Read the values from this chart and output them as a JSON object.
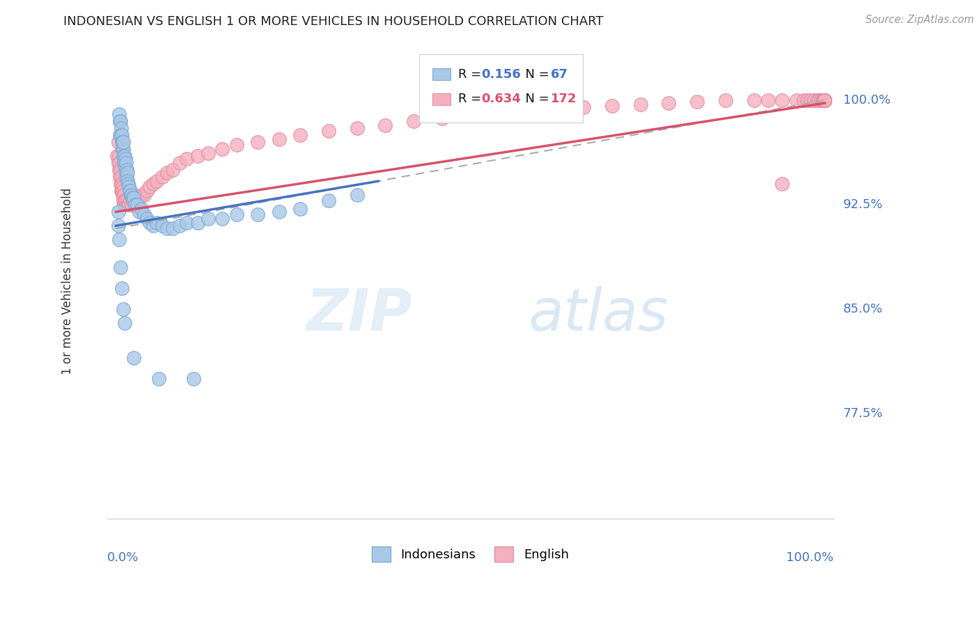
{
  "title": "INDONESIAN VS ENGLISH 1 OR MORE VEHICLES IN HOUSEHOLD CORRELATION CHART",
  "source": "Source: ZipAtlas.com",
  "ylabel": "1 or more Vehicles in Household",
  "ytick_labels": [
    "100.0%",
    "92.5%",
    "85.0%",
    "77.5%"
  ],
  "ytick_values": [
    1.0,
    0.925,
    0.85,
    0.775
  ],
  "watermark_zip": "ZIP",
  "watermark_atlas": "atlas",
  "color_indonesian": "#a8c8e8",
  "color_english": "#f5b0c0",
  "color_line_indonesian": "#4472c4",
  "color_line_english": "#d94f6a",
  "legend_r1_val": "0.156",
  "legend_n1_val": "67",
  "legend_r2_val": "0.634",
  "legend_n2_val": "172",
  "ind_x": [
    0.004,
    0.005,
    0.005,
    0.006,
    0.007,
    0.007,
    0.008,
    0.008,
    0.009,
    0.009,
    0.01,
    0.01,
    0.01,
    0.011,
    0.011,
    0.012,
    0.012,
    0.013,
    0.013,
    0.014,
    0.014,
    0.015,
    0.015,
    0.016,
    0.016,
    0.017,
    0.018,
    0.019,
    0.02,
    0.021,
    0.022,
    0.023,
    0.024,
    0.025,
    0.027,
    0.03,
    0.033,
    0.036,
    0.04,
    0.044,
    0.048,
    0.053,
    0.058,
    0.065,
    0.072,
    0.08,
    0.09,
    0.1,
    0.115,
    0.13,
    0.15,
    0.17,
    0.2,
    0.23,
    0.26,
    0.3,
    0.34,
    0.003,
    0.003,
    0.004,
    0.006,
    0.008,
    0.01,
    0.012,
    0.025,
    0.06,
    0.11
  ],
  "ind_y": [
    0.99,
    0.985,
    0.975,
    0.985,
    0.98,
    0.975,
    0.975,
    0.97,
    0.97,
    0.965,
    0.965,
    0.96,
    0.97,
    0.96,
    0.955,
    0.96,
    0.955,
    0.958,
    0.952,
    0.955,
    0.948,
    0.95,
    0.945,
    0.948,
    0.942,
    0.94,
    0.938,
    0.935,
    0.935,
    0.932,
    0.932,
    0.93,
    0.928,
    0.93,
    0.925,
    0.925,
    0.92,
    0.922,
    0.918,
    0.915,
    0.912,
    0.91,
    0.912,
    0.91,
    0.908,
    0.908,
    0.91,
    0.912,
    0.912,
    0.915,
    0.915,
    0.918,
    0.918,
    0.92,
    0.922,
    0.928,
    0.932,
    0.92,
    0.91,
    0.9,
    0.88,
    0.865,
    0.85,
    0.84,
    0.815,
    0.8,
    0.8
  ],
  "eng_x": [
    0.002,
    0.003,
    0.003,
    0.004,
    0.004,
    0.005,
    0.005,
    0.006,
    0.006,
    0.007,
    0.007,
    0.008,
    0.008,
    0.009,
    0.009,
    0.01,
    0.01,
    0.011,
    0.011,
    0.012,
    0.013,
    0.014,
    0.015,
    0.016,
    0.017,
    0.018,
    0.02,
    0.022,
    0.024,
    0.026,
    0.028,
    0.03,
    0.033,
    0.036,
    0.04,
    0.044,
    0.048,
    0.053,
    0.058,
    0.065,
    0.072,
    0.08,
    0.09,
    0.1,
    0.115,
    0.13,
    0.15,
    0.17,
    0.2,
    0.23,
    0.26,
    0.3,
    0.34,
    0.38,
    0.42,
    0.46,
    0.5,
    0.54,
    0.58,
    0.62,
    0.66,
    0.7,
    0.74,
    0.78,
    0.82,
    0.86,
    0.9,
    0.92,
    0.94,
    0.96,
    0.97,
    0.975,
    0.98,
    0.985,
    0.99,
    0.992,
    0.995,
    0.997,
    0.998,
    0.999,
    1.0,
    1.0,
    1.0,
    1.0,
    1.0,
    1.0,
    1.0,
    1.0,
    1.0,
    1.0,
    1.0,
    1.0,
    1.0,
    1.0,
    1.0,
    1.0,
    1.0,
    1.0,
    1.0,
    1.0,
    1.0,
    1.0,
    1.0,
    1.0,
    1.0,
    1.0,
    1.0,
    1.0,
    1.0,
    1.0,
    1.0,
    1.0,
    1.0,
    1.0,
    1.0,
    1.0,
    1.0,
    1.0,
    1.0,
    1.0,
    1.0,
    1.0,
    1.0,
    1.0,
    1.0,
    1.0,
    1.0,
    1.0,
    1.0,
    1.0,
    1.0,
    1.0,
    1.0,
    1.0,
    1.0,
    1.0,
    1.0,
    1.0,
    1.0,
    1.0,
    1.0,
    1.0,
    1.0,
    1.0,
    1.0,
    1.0,
    1.0,
    1.0,
    1.0,
    1.0,
    1.0,
    1.0,
    1.0,
    1.0,
    1.0,
    1.0,
    1.0,
    1.0,
    1.0,
    1.0,
    1.0,
    1.0,
    0.94
  ],
  "eng_y": [
    0.96,
    0.97,
    0.955,
    0.96,
    0.95,
    0.955,
    0.945,
    0.95,
    0.94,
    0.945,
    0.935,
    0.94,
    0.935,
    0.938,
    0.932,
    0.935,
    0.928,
    0.932,
    0.925,
    0.928,
    0.928,
    0.925,
    0.925,
    0.928,
    0.925,
    0.925,
    0.928,
    0.925,
    0.928,
    0.928,
    0.928,
    0.93,
    0.93,
    0.932,
    0.932,
    0.935,
    0.938,
    0.94,
    0.942,
    0.945,
    0.948,
    0.95,
    0.955,
    0.958,
    0.96,
    0.962,
    0.965,
    0.968,
    0.97,
    0.972,
    0.975,
    0.978,
    0.98,
    0.982,
    0.985,
    0.987,
    0.99,
    0.992,
    0.993,
    0.994,
    0.995,
    0.996,
    0.997,
    0.998,
    0.999,
    1.0,
    1.0,
    1.0,
    1.0,
    1.0,
    1.0,
    1.0,
    1.0,
    1.0,
    1.0,
    1.0,
    1.0,
    1.0,
    1.0,
    1.0,
    1.0,
    1.0,
    1.0,
    1.0,
    1.0,
    1.0,
    1.0,
    1.0,
    1.0,
    1.0,
    1.0,
    1.0,
    1.0,
    1.0,
    1.0,
    1.0,
    1.0,
    1.0,
    1.0,
    1.0,
    1.0,
    1.0,
    1.0,
    1.0,
    1.0,
    1.0,
    1.0,
    1.0,
    1.0,
    1.0,
    1.0,
    1.0,
    1.0,
    1.0,
    1.0,
    1.0,
    1.0,
    1.0,
    1.0,
    1.0,
    1.0,
    1.0,
    1.0,
    1.0,
    1.0,
    1.0,
    1.0,
    1.0,
    1.0,
    1.0,
    1.0,
    1.0,
    1.0,
    1.0,
    1.0,
    1.0,
    1.0,
    1.0,
    1.0,
    1.0,
    1.0,
    1.0,
    1.0,
    1.0,
    1.0,
    1.0,
    1.0,
    1.0,
    1.0,
    1.0,
    1.0,
    1.0,
    1.0,
    1.0,
    1.0,
    1.0,
    1.0,
    1.0,
    1.0,
    1.0,
    1.0,
    1.0,
    0.94
  ]
}
